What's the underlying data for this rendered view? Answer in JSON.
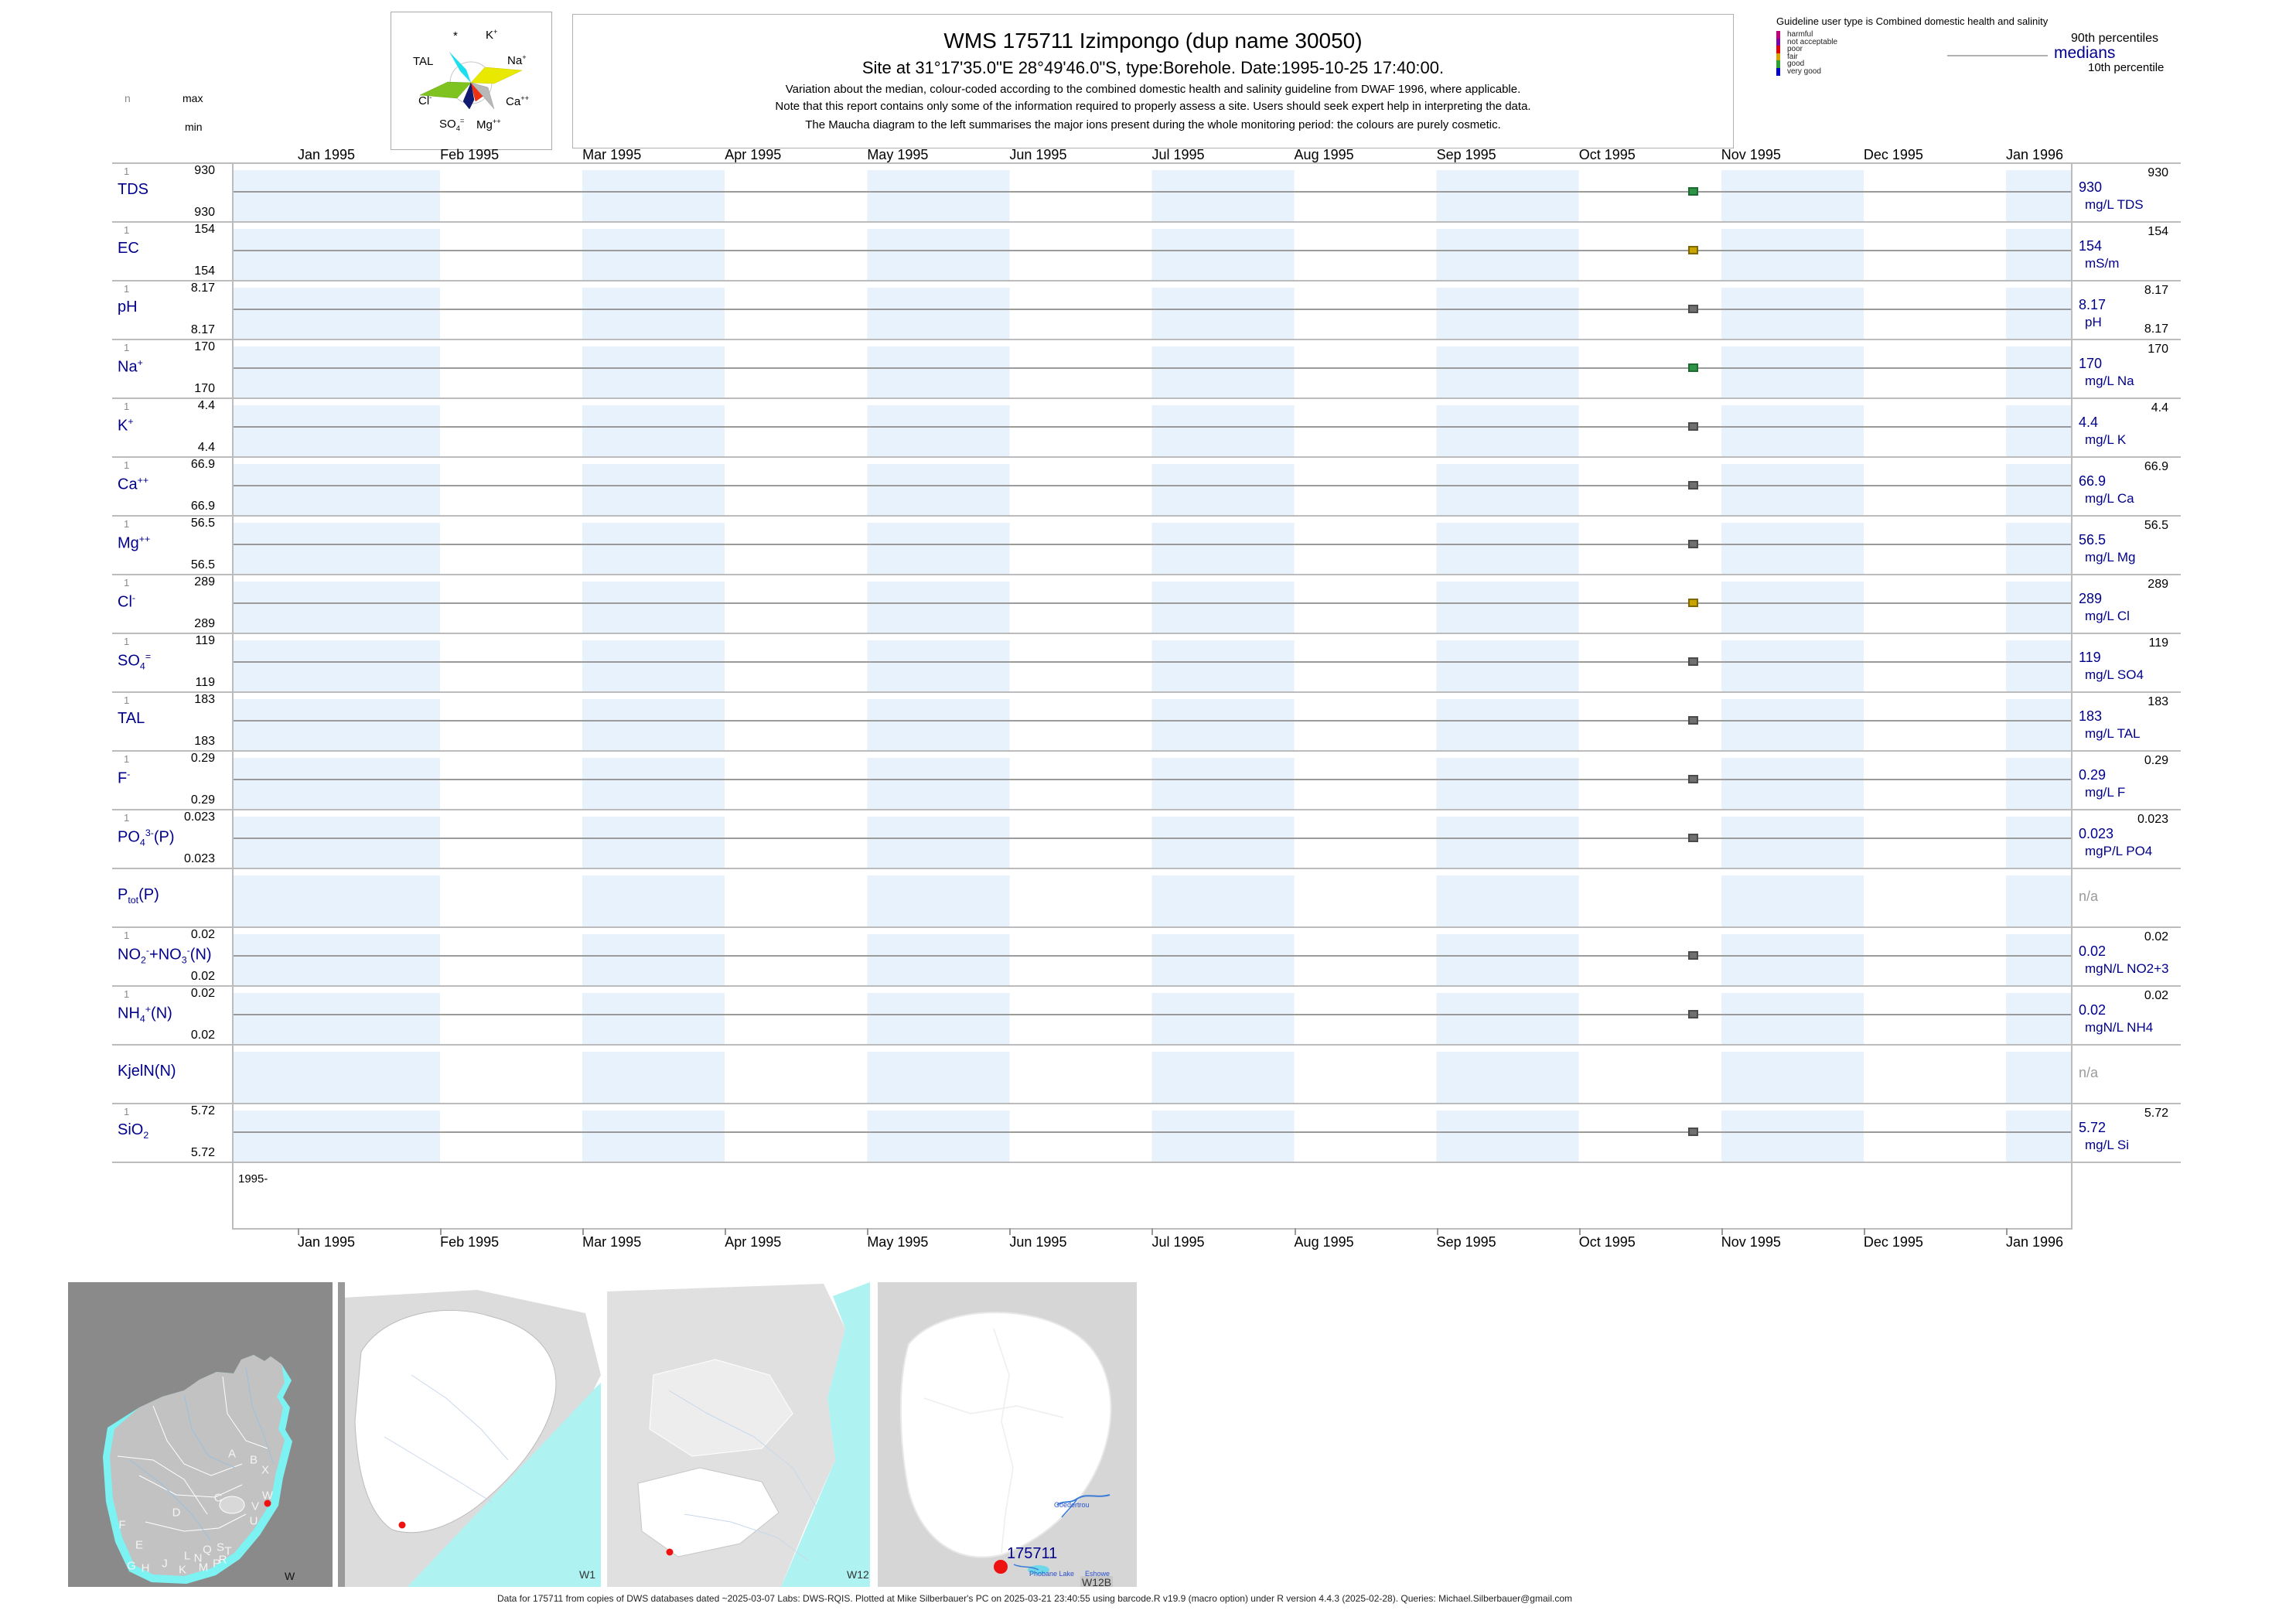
{
  "header": {
    "stats_n": "n",
    "stats_max": "max",
    "stats_min": "min",
    "title": "WMS 175711  Izimpongo (dup name 30050)",
    "site_line": "Site at 31°17'35.0\"E 28°49'46.0\"S, type:Borehole. Date:1995-10-25 17:40:00.",
    "note1": "Variation about the median,  colour-coded according to the combined domestic health and salinity guideline from DWAF 1996, where applicable.",
    "note2": "Note that this report contains only some of the information required to properly assess a site. Users should seek expert help in interpreting the data.",
    "note3": "The Maucha diagram to the left summarises the major ions present during the whole monitoring period: the colours are purely cosmetic."
  },
  "maucha": {
    "labels": {
      "star": "*",
      "k": "K<sup>+</sup>",
      "tal": "TAL",
      "na": "Na<sup>+</sup>",
      "cl": "Cl<sup>-</sup>",
      "ca": "Ca<sup>++</sup>",
      "so4": "SO<sub>4</sub><sup>=</sup>",
      "mg": "Mg<sup>++</sup>"
    }
  },
  "guideline": {
    "title": "Guideline user type is Combined domestic health and salinity",
    "classes": [
      {
        "label": "harmful",
        "color": "#c00078",
        "style": "background:#c00078"
      },
      {
        "label": "not acceptable",
        "color": "#8000a8",
        "style": "background:#8000a8"
      },
      {
        "label": "poor",
        "color": "#e60000",
        "style": "background:#e60000"
      },
      {
        "label": "fair",
        "color": "#d2a500",
        "style": "background:#d2a500"
      },
      {
        "label": "good",
        "color": "#2da12d",
        "style": "background:#2da12d"
      },
      {
        "label": "very good",
        "color": "#0000cc",
        "style": "background:#0000cc"
      }
    ],
    "p90_label": "90th percentiles",
    "median_label": "medians",
    "p10_label": "10th percentile"
  },
  "axis": {
    "months": [
      "Jan 1995",
      "Feb 1995",
      "Mar 1995",
      "Apr 1995",
      "May 1995",
      "Jun 1995",
      "Jul 1995",
      "Aug 1995",
      "Sep 1995",
      "Oct 1995",
      "Nov 1995",
      "Dec 1995",
      "Jan 1996"
    ],
    "period_label": "1995-"
  },
  "rows": [
    {
      "n": "1",
      "max": "930",
      "min": "930",
      "name_html": "TDS",
      "p90": "930",
      "median": "930",
      "unit": "mg/L TDS",
      "medline_style": "display:block",
      "marker_style": "display:block;background:#2e9247;border-color:#1d6b33"
    },
    {
      "n": "1",
      "max": "154",
      "min": "154",
      "name_html": "EC",
      "p90": "154",
      "median": "154",
      "unit": "mS/m",
      "medline_style": "display:block",
      "marker_style": "display:block;background:#c9a400;border-color:#7e6700"
    },
    {
      "n": "1",
      "max": "8.17",
      "min": "8.17",
      "name_html": "pH",
      "p90": "8.17",
      "median": "8.17",
      "unit": "pH",
      "p10": "8.17",
      "medline_style": "display:block",
      "marker_style": "display:block;background:#6f6f6f;border-color:#4b4b4b"
    },
    {
      "n": "1",
      "max": "170",
      "min": "170",
      "name_html": "Na<sup>+</sup>",
      "p90": "170",
      "median": "170",
      "unit": "mg/L Na",
      "medline_style": "display:block",
      "marker_style": "display:block;background:#2e9247;border-color:#1d6b33"
    },
    {
      "n": "1",
      "max": "4.4",
      "min": "4.4",
      "name_html": "K<sup>+</sup>",
      "p90": "4.4",
      "median": "4.4",
      "unit": "mg/L K",
      "medline_style": "display:block",
      "marker_style": "display:block;background:#6f6f6f;border-color:#4b4b4b"
    },
    {
      "n": "1",
      "max": "66.9",
      "min": "66.9",
      "name_html": "Ca<sup>++</sup>",
      "p90": "66.9",
      "median": "66.9",
      "unit": "mg/L Ca",
      "medline_style": "display:block",
      "marker_style": "display:block;background:#6f6f6f;border-color:#4b4b4b"
    },
    {
      "n": "1",
      "max": "56.5",
      "min": "56.5",
      "name_html": "Mg<sup>++</sup>",
      "p90": "56.5",
      "median": "56.5",
      "unit": "mg/L Mg",
      "medline_style": "display:block",
      "marker_style": "display:block;background:#6f6f6f;border-color:#4b4b4b"
    },
    {
      "n": "1",
      "max": "289",
      "min": "289",
      "name_html": "Cl<sup>-</sup>",
      "p90": "289",
      "median": "289",
      "unit": "mg/L Cl",
      "medline_style": "display:block",
      "marker_style": "display:block;background:#c9a400;border-color:#7e6700"
    },
    {
      "n": "1",
      "max": "119",
      "min": "119",
      "name_html": "SO<sub>4</sub><sup>=</sup>",
      "p90": "119",
      "median": "119",
      "unit": "mg/L SO4",
      "medline_style": "display:block",
      "marker_style": "display:block;background:#6f6f6f;border-color:#4b4b4b"
    },
    {
      "n": "1",
      "max": "183",
      "min": "183",
      "name_html": "TAL",
      "p90": "183",
      "median": "183",
      "unit": "mg/L TAL",
      "medline_style": "display:block",
      "marker_style": "display:block;background:#6f6f6f;border-color:#4b4b4b"
    },
    {
      "n": "1",
      "max": "0.29",
      "min": "0.29",
      "name_html": "F<sup>-</sup>",
      "p90": "0.29",
      "median": "0.29",
      "unit": "mg/L F",
      "medline_style": "display:block",
      "marker_style": "display:block;background:#6f6f6f;border-color:#4b4b4b"
    },
    {
      "n": "1",
      "max": "0.023",
      "min": "0.023",
      "name_html": "PO<sub>4</sub><sup>3-</sup>(P)",
      "p90": "0.023",
      "median": "0.023",
      "unit": "mgP/L PO4",
      "medline_style": "display:block",
      "marker_style": "display:block;background:#6f6f6f;border-color:#4b4b4b"
    },
    {
      "name_html": "P<sub>tot</sub>(P)",
      "na": "n/a"
    },
    {
      "n": "1",
      "max": "0.02",
      "min": "0.02",
      "name_html": "NO<sub>2</sub><sup>-</sup>+NO<sub>3</sub><sup>-</sup>(N)",
      "p90": "0.02",
      "median": "0.02",
      "unit": "mgN/L NO2+3",
      "medline_style": "display:block",
      "marker_style": "display:block;background:#6f6f6f;border-color:#4b4b4b"
    },
    {
      "n": "1",
      "max": "0.02",
      "min": "0.02",
      "name_html": "NH<sub>4</sub><sup>+</sup>(N)",
      "p90": "0.02",
      "median": "0.02",
      "unit": "mgN/L NH4",
      "medline_style": "display:block",
      "marker_style": "display:block;background:#6f6f6f;border-color:#4b4b4b"
    },
    {
      "name_html": "KjelN(N)",
      "na": "n/a"
    },
    {
      "n": "1",
      "max": "5.72",
      "min": "5.72",
      "name_html": "SiO<sub>2</sub>",
      "p90": "5.72",
      "median": "5.72",
      "unit": "mg/L Si",
      "medline_style": "display:block",
      "marker_style": "display:block;background:#6f6f6f;border-color:#4b4b4b"
    }
  ],
  "chart_data": {
    "type": "scatter",
    "title": "WMS 175711  Izimpongo (dup name 30050)",
    "x_ticks": [
      "Jan 1995",
      "Feb 1995",
      "Mar 1995",
      "Apr 1995",
      "May 1995",
      "Jun 1995",
      "Jul 1995",
      "Aug 1995",
      "Sep 1995",
      "Oct 1995",
      "Nov 1995",
      "Dec 1995",
      "Jan 1996"
    ],
    "sample_date": "1995-10-25 17:40:00",
    "n_samples": 1,
    "legend_position": "top-right",
    "series": [
      {
        "name": "TDS",
        "unit": "mg/L TDS",
        "n": 1,
        "value": 930,
        "min": 930,
        "max": 930,
        "median": 930,
        "p90": 930,
        "marker_color": "#2e9247"
      },
      {
        "name": "EC",
        "unit": "mS/m",
        "n": 1,
        "value": 154,
        "min": 154,
        "max": 154,
        "median": 154,
        "p90": 154,
        "marker_color": "#c9a400"
      },
      {
        "name": "pH",
        "unit": "pH",
        "n": 1,
        "value": 8.17,
        "min": 8.17,
        "max": 8.17,
        "median": 8.17,
        "p90": 8.17,
        "p10": 8.17,
        "marker_color": "#6f6f6f"
      },
      {
        "name": "Na+",
        "unit": "mg/L Na",
        "n": 1,
        "value": 170,
        "min": 170,
        "max": 170,
        "median": 170,
        "p90": 170,
        "marker_color": "#2e9247"
      },
      {
        "name": "K+",
        "unit": "mg/L K",
        "n": 1,
        "value": 4.4,
        "min": 4.4,
        "max": 4.4,
        "median": 4.4,
        "p90": 4.4,
        "marker_color": "#6f6f6f"
      },
      {
        "name": "Ca++",
        "unit": "mg/L Ca",
        "n": 1,
        "value": 66.9,
        "min": 66.9,
        "max": 66.9,
        "median": 66.9,
        "p90": 66.9,
        "marker_color": "#6f6f6f"
      },
      {
        "name": "Mg++",
        "unit": "mg/L Mg",
        "n": 1,
        "value": 56.5,
        "min": 56.5,
        "max": 56.5,
        "median": 56.5,
        "p90": 56.5,
        "marker_color": "#6f6f6f"
      },
      {
        "name": "Cl-",
        "unit": "mg/L Cl",
        "n": 1,
        "value": 289,
        "min": 289,
        "max": 289,
        "median": 289,
        "p90": 289,
        "marker_color": "#c9a400"
      },
      {
        "name": "SO4=",
        "unit": "mg/L SO4",
        "n": 1,
        "value": 119,
        "min": 119,
        "max": 119,
        "median": 119,
        "p90": 119,
        "marker_color": "#6f6f6f"
      },
      {
        "name": "TAL",
        "unit": "mg/L TAL",
        "n": 1,
        "value": 183,
        "min": 183,
        "max": 183,
        "median": 183,
        "p90": 183,
        "marker_color": "#6f6f6f"
      },
      {
        "name": "F-",
        "unit": "mg/L F",
        "n": 1,
        "value": 0.29,
        "min": 0.29,
        "max": 0.29,
        "median": 0.29,
        "p90": 0.29,
        "marker_color": "#6f6f6f"
      },
      {
        "name": "PO43-(P)",
        "unit": "mgP/L PO4",
        "n": 1,
        "value": 0.023,
        "min": 0.023,
        "max": 0.023,
        "median": 0.023,
        "p90": 0.023,
        "marker_color": "#6f6f6f"
      },
      {
        "name": "Ptot(P)",
        "value": null,
        "note": "n/a"
      },
      {
        "name": "NO2-+NO3-(N)",
        "unit": "mgN/L NO2+3",
        "n": 1,
        "value": 0.02,
        "min": 0.02,
        "max": 0.02,
        "median": 0.02,
        "p90": 0.02,
        "marker_color": "#6f6f6f"
      },
      {
        "name": "NH4+(N)",
        "unit": "mgN/L NH4",
        "n": 1,
        "value": 0.02,
        "min": 0.02,
        "max": 0.02,
        "median": 0.02,
        "p90": 0.02,
        "marker_color": "#6f6f6f"
      },
      {
        "name": "KjelN(N)",
        "value": null,
        "note": "n/a"
      },
      {
        "name": "SiO2",
        "unit": "mg/L Si",
        "n": 1,
        "value": 5.72,
        "min": 5.72,
        "max": 5.72,
        "median": 5.72,
        "p90": 5.72,
        "marker_color": "#6f6f6f"
      }
    ]
  },
  "maps": {
    "panel1": {
      "label": "W",
      "letters": [
        "A",
        "B",
        "X",
        "W",
        "C",
        "V",
        "U",
        "D",
        "F",
        "E",
        "G",
        "H",
        "J",
        "K",
        "L",
        "M",
        "N",
        "P",
        "Q",
        "R",
        "S",
        "T"
      ]
    },
    "panel2": {
      "label": "W1"
    },
    "panel3": {
      "label": "W12"
    },
    "panel4": {
      "label": "W12B",
      "site_id": "175711",
      "dam": "Goedertrou",
      "lake": "Phobane Lake",
      "town": "Eshowe"
    }
  },
  "footer": "Data for 175711 from copies of DWS databases dated ~2025-03-07 Labs: DWS-RQIS. Plotted at Mike Silberbauer's PC on 2025-03-21 23:40:55 using barcode.R v19.9 (macro option) under R version 4.4.3 (2025-02-28). Queries: Michael.Silberbauer@gmail.com"
}
